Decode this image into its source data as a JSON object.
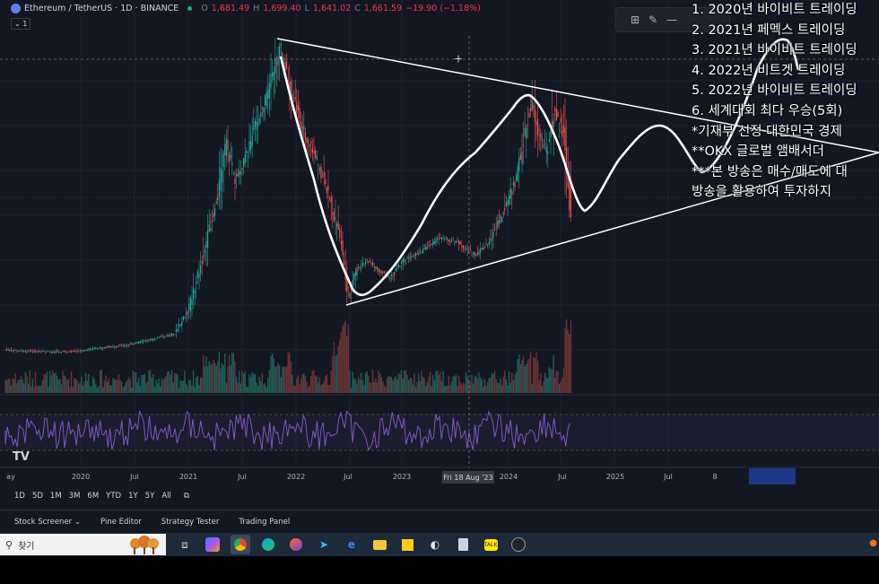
{
  "header": {
    "symbol": "Ethereum / TetherUS · 1D · BINANCE",
    "o_label": "O",
    "o_val": "1,681.49",
    "h_label": "H",
    "h_val": "1,699.40",
    "l_label": "L",
    "l_val": "1,641.02",
    "c_label": "C",
    "c_val": "1,661.59",
    "change": "−19.90 (−1.18%)",
    "indicator_count": "1"
  },
  "overlay_lines": [
    "1. 2020년 바이비트 트레이딩",
    "2. 2021년 페멕스 트레이딩",
    "3. 2021년 바이비트 트레이딩",
    "4. 2022년 비트겟 트레이딩",
    "5. 2022년 바이비트 트레이딩",
    "6. 세계대회 최다 우승(5회)",
    "*기재부 선정 대한민국 경제",
    "**OKX 글로벌 앰배서더",
    "***본 방송은 매수/매도에 대",
    "방송을 활용하여 투자하지"
  ],
  "x_axis": {
    "labels": [
      "ay",
      "2020",
      "Jul",
      "2021",
      "Jul",
      "2022",
      "Jul",
      "2023",
      "2024",
      "Jul",
      "2025",
      "Jul",
      "8"
    ],
    "cursor_label": "Fri 18 Aug '23"
  },
  "periods": [
    "1D",
    "5D",
    "1M",
    "3M",
    "6M",
    "YTD",
    "1Y",
    "5Y",
    "All"
  ],
  "bottom_tabs": {
    "stock_screener": "Stock Screener",
    "pine_editor": "Pine Editor",
    "strategy_tester": "Strategy Tester",
    "trading_panel": "Trading Panel"
  },
  "taskbar": {
    "search_placeholder": "찾기"
  },
  "colors": {
    "background": "#131722",
    "up": "#26a69a",
    "down": "#ef5350",
    "rsi": "#7e57c2",
    "drawing": "#ffffff"
  }
}
